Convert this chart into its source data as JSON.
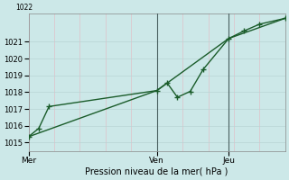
{
  "title": "",
  "xlabel": "Pression niveau de la mer( hPa )",
  "ylabel": "",
  "bg_color": "#cce8e8",
  "line_color": "#1a5c2a",
  "grid_color": "#b8d4d4",
  "grid_color2": "#e0c0c8",
  "xtick_labels": [
    "Mer",
    "Ven",
    "Jeu"
  ],
  "xtick_positions": [
    0.0,
    0.5,
    0.78
  ],
  "ylim": [
    1014.5,
    1022.7
  ],
  "yticks": [
    1015,
    1016,
    1017,
    1018,
    1019,
    1020,
    1021
  ],
  "ytop_label": "1022",
  "line1_x": [
    0.0,
    0.04,
    0.08,
    0.5,
    0.54,
    0.58,
    0.63,
    0.68,
    0.78,
    0.84,
    0.9,
    1.0
  ],
  "line1_y": [
    1015.35,
    1015.85,
    1017.15,
    1018.1,
    1018.55,
    1017.7,
    1018.05,
    1019.35,
    1021.2,
    1021.65,
    1022.05,
    1022.4
  ],
  "line2_x": [
    0.0,
    0.5,
    0.78,
    1.0
  ],
  "line2_y": [
    1015.35,
    1018.1,
    1021.2,
    1022.4
  ],
  "vline_positions": [
    0.5,
    0.78
  ],
  "marker_size": 3,
  "line_width": 1.0
}
